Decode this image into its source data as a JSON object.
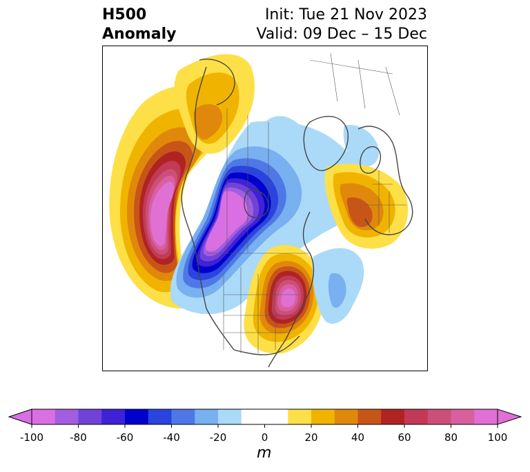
{
  "header": {
    "left_line1": "H500",
    "left_line2": "Anomaly",
    "init": "Init: Tue 21 Nov 2023",
    "valid": "Valid: 09 Dec – 15 Dec"
  },
  "colorbar": {
    "units": "m",
    "tick_labels": [
      "-100",
      "-80",
      "-60",
      "-40",
      "-20",
      "0",
      "20",
      "40",
      "60",
      "80",
      "100"
    ],
    "levels": [
      -100,
      -90,
      -80,
      -70,
      -60,
      -50,
      -40,
      -30,
      -20,
      -10,
      10,
      20,
      30,
      40,
      50,
      60,
      70,
      80,
      90,
      100
    ],
    "colors": [
      "#d96fe3",
      "#a25ee0",
      "#7043d8",
      "#3f21d6",
      "#0000cc",
      "#2a44dd",
      "#4f78e6",
      "#78b0f0",
      "#aadaf8",
      "#ffffff",
      "#fde047",
      "#f0b400",
      "#e0880c",
      "#c85518",
      "#b02323",
      "#c23a55",
      "#cc4f7a",
      "#d8609f",
      "#e070d4"
    ],
    "under_color": "#d96fe3",
    "over_color": "#e070d4"
  },
  "map": {
    "colors": {
      "pos10": "#fde047",
      "pos20": "#f0b400",
      "pos30": "#e0880c",
      "pos40": "#c85518",
      "pos50": "#b02323",
      "pos60": "#c23a55",
      "pos70": "#cc4f7a",
      "pos80": "#d8609f",
      "pos90": "#e070d4",
      "neg10": "#aadaf8",
      "neg20": "#78b0f0",
      "neg30": "#4f78e6",
      "neg40": "#2a44dd",
      "neg50": "#0000cc",
      "neg60": "#3f21d6",
      "neg70": "#7043d8",
      "neg80": "#a25ee0",
      "neg90": "#d96fe3",
      "coast": "#444444"
    }
  }
}
